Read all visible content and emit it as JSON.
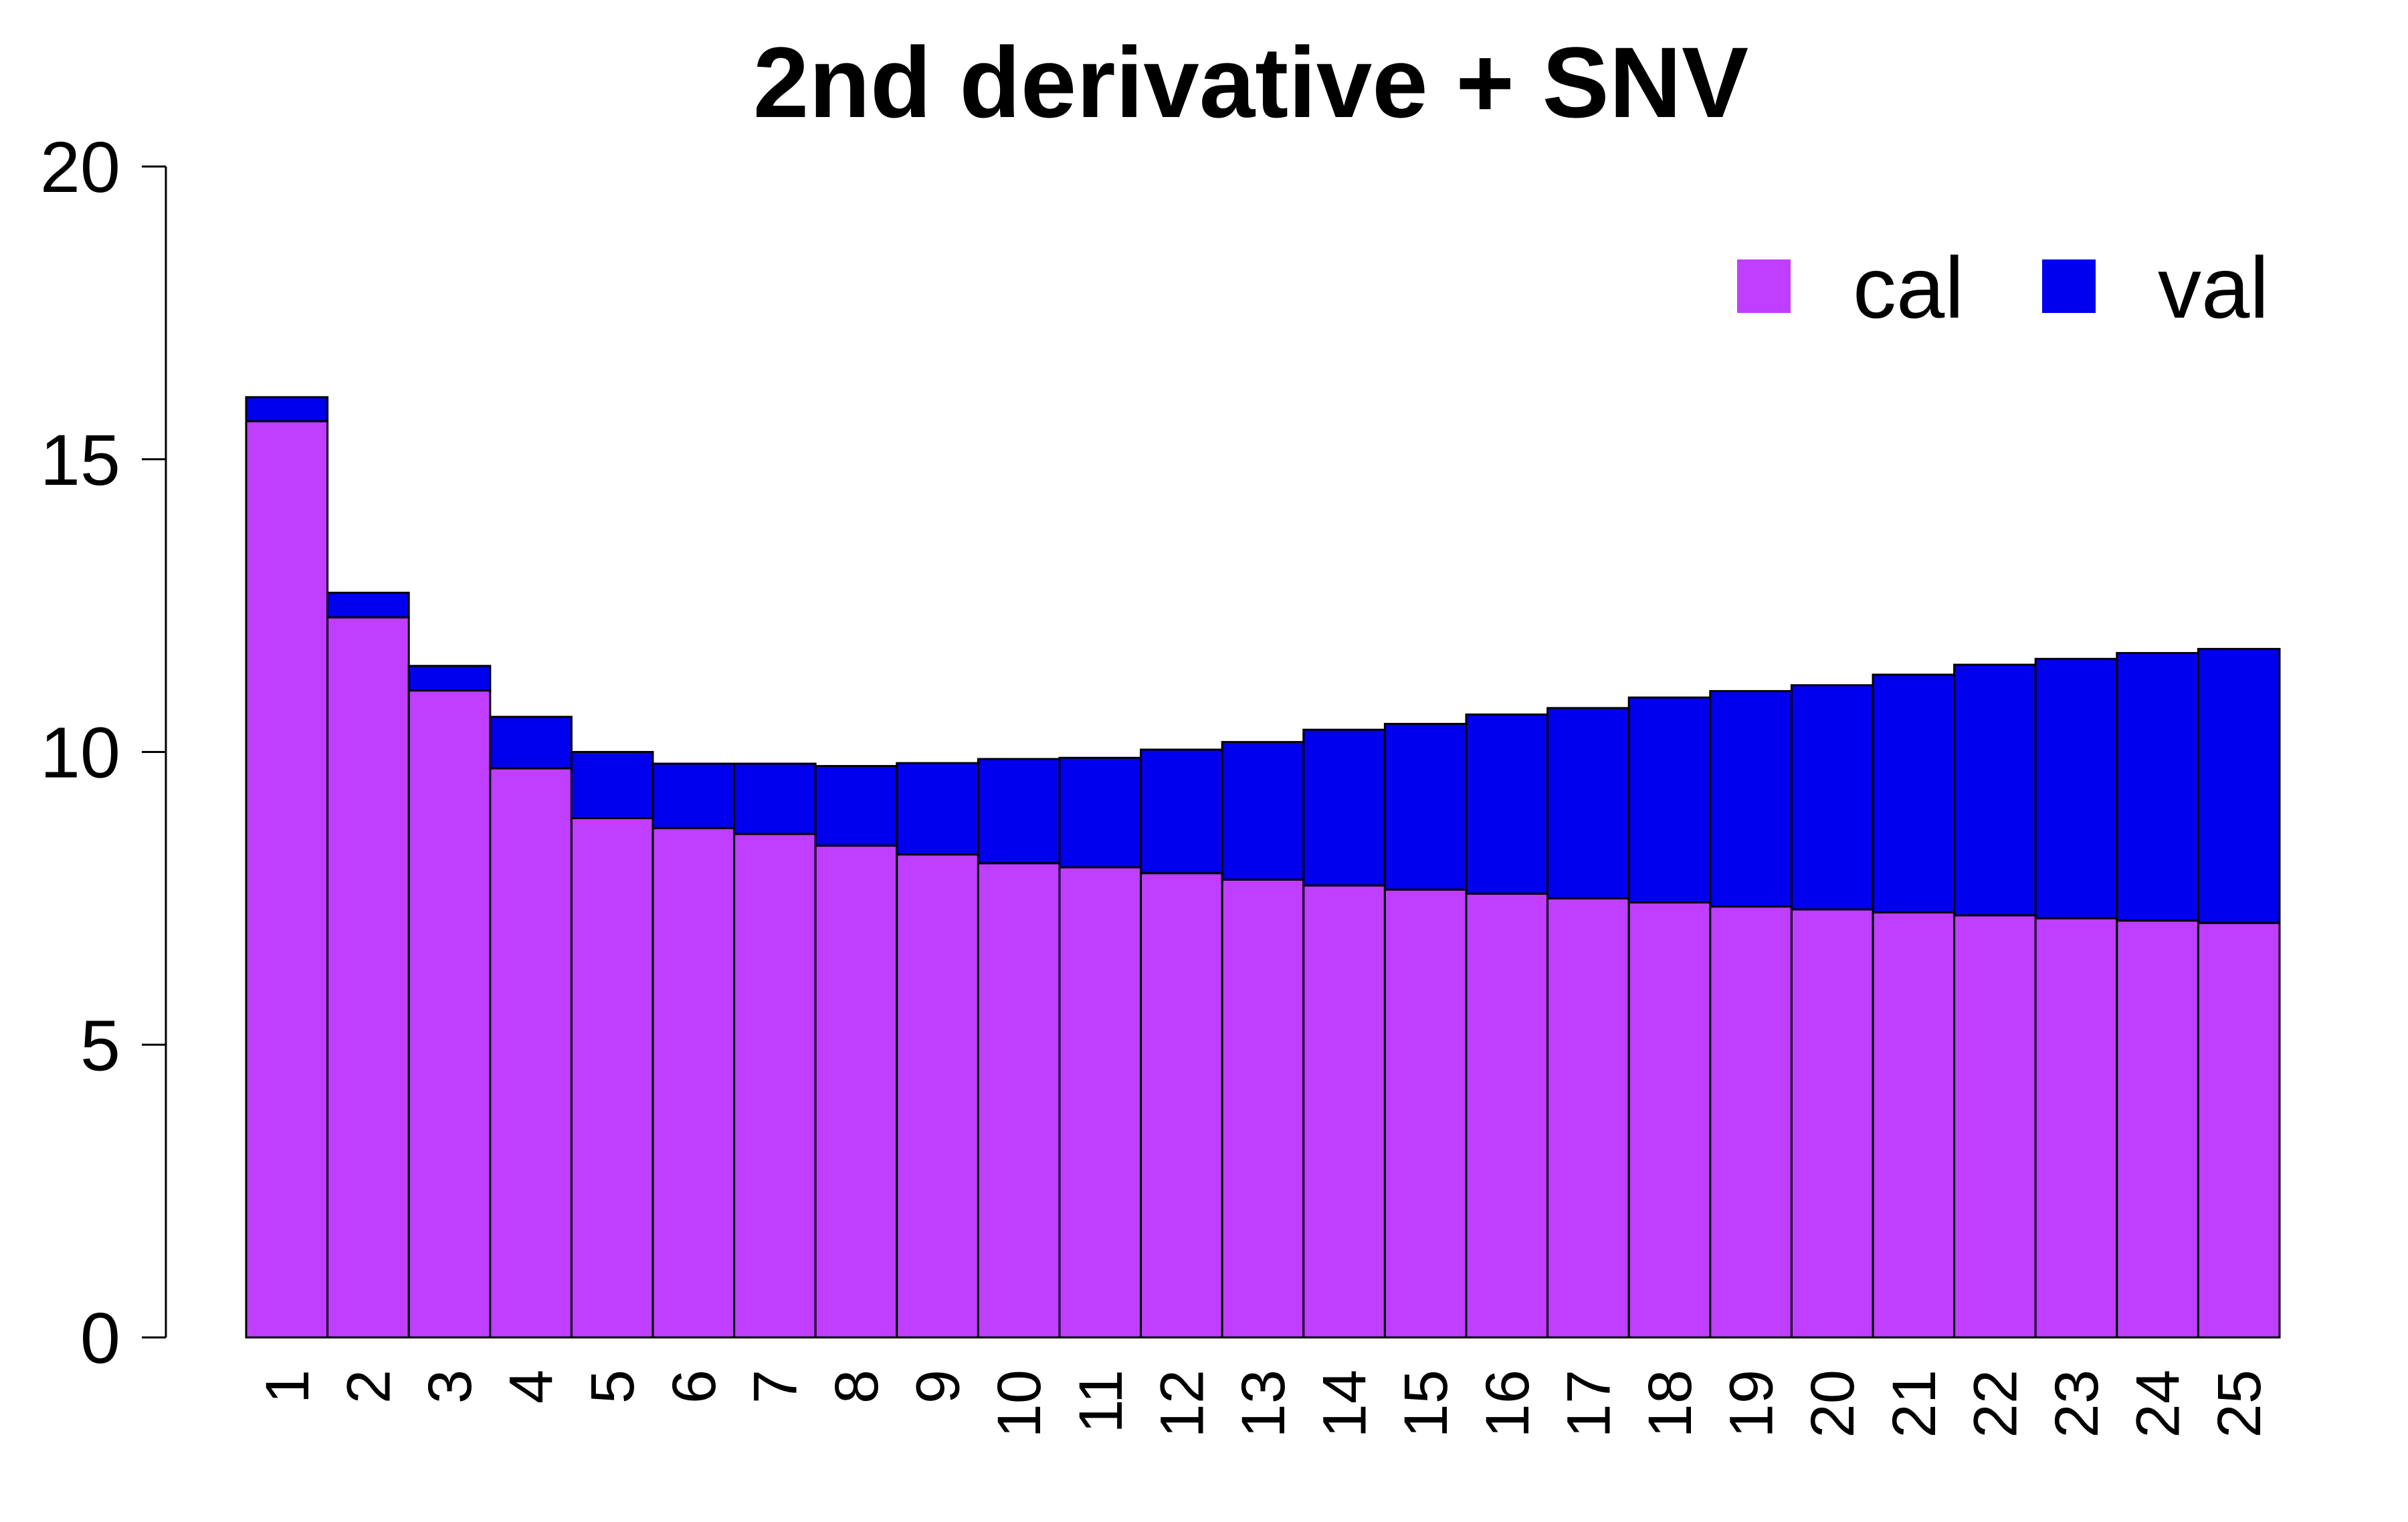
{
  "chart_data": {
    "type": "bar",
    "stacked": true,
    "title": "2nd derivative + SNV",
    "xlabel": "",
    "ylabel": "",
    "ylim": [
      0,
      20
    ],
    "yticks": [
      "0",
      "5",
      "10",
      "15",
      "20"
    ],
    "grid": false,
    "legend_position": "top-right",
    "categories": [
      "1",
      "2",
      "3",
      "4",
      "5",
      "6",
      "7",
      "8",
      "9",
      "10",
      "11",
      "12",
      "13",
      "14",
      "15",
      "16",
      "17",
      "18",
      "19",
      "20",
      "21",
      "22",
      "23",
      "24",
      "25"
    ],
    "series": [
      {
        "name": "cal",
        "color": "#BF3EFF",
        "values": [
          15.65,
          12.3,
          11.05,
          9.72,
          8.87,
          8.7,
          8.6,
          8.4,
          8.25,
          8.1,
          8.03,
          7.93,
          7.82,
          7.72,
          7.65,
          7.58,
          7.5,
          7.43,
          7.36,
          7.31,
          7.26,
          7.21,
          7.16,
          7.12,
          7.08
        ]
      },
      {
        "name": "val",
        "color": "#0000EE",
        "values": [
          0.41,
          0.42,
          0.42,
          0.88,
          1.13,
          1.1,
          1.2,
          1.36,
          1.56,
          1.78,
          1.87,
          2.11,
          2.35,
          2.66,
          2.83,
          3.06,
          3.25,
          3.5,
          3.68,
          3.83,
          4.06,
          4.28,
          4.43,
          4.57,
          4.68
        ]
      }
    ]
  }
}
